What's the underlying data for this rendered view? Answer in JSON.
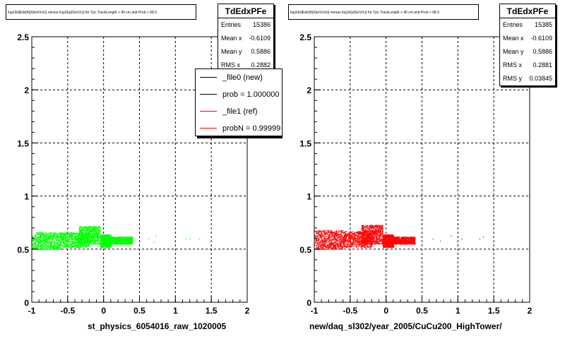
{
  "chart_data": [
    {
      "type": "scatter",
      "title": "log10(dEdx(fit)/(keV/cm)) versus log10(p(GeV/c)) for Tpc.TrackLength > 40 cm and Prob > 68.3",
      "xlabel": "st_physics_6054016_raw_1020005",
      "ylabel": "",
      "xlim": [
        -1,
        2
      ],
      "ylim": [
        0,
        2.5
      ],
      "x_ticks": [
        "-1",
        "-0.5",
        "0",
        "0.5",
        "1",
        "1.5",
        "2"
      ],
      "y_ticks": [
        "0",
        "0.5",
        "1",
        "1.5",
        "2",
        "2.5"
      ],
      "grid": true,
      "color": "#00ff00",
      "stats": {
        "name": "TdEdxPFe",
        "rows": [
          {
            "label": "Entries",
            "value": "15386"
          },
          {
            "label": "Mean x",
            "value": "-0.6109"
          },
          {
            "label": "Mean y",
            "value": "0.5886"
          },
          {
            "label": "RMS x",
            "value": "0.2882"
          }
        ]
      },
      "legend": [
        {
          "label": "_file0 (new)",
          "color": "#000000"
        },
        {
          "label": "prob = 1.000000",
          "color": "#000000"
        },
        {
          "label": "_file1 (ref)",
          "color": "#ff0000"
        },
        {
          "label": "probN = 0.99999",
          "color": "#ff0000"
        }
      ],
      "bands": [
        {
          "x": [
            -1.0,
            -0.6
          ],
          "y": [
            0.5,
            0.66
          ]
        },
        {
          "x": [
            -0.6,
            -0.2
          ],
          "y": [
            0.52,
            0.66
          ]
        },
        {
          "x": [
            -0.35,
            -0.05
          ],
          "y": [
            0.55,
            0.72
          ]
        },
        {
          "x": [
            -0.05,
            0.1
          ],
          "y": [
            0.52,
            0.64
          ]
        },
        {
          "x": [
            0.1,
            0.4
          ],
          "y": [
            0.55,
            0.62
          ]
        }
      ],
      "outliers": [
        {
          "x": 0.62,
          "y": 0.6
        },
        {
          "x": 0.7,
          "y": 0.57
        },
        {
          "x": 0.72,
          "y": 0.63
        },
        {
          "x": 1.15,
          "y": 0.6
        },
        {
          "x": 1.2,
          "y": 0.6
        },
        {
          "x": 1.33,
          "y": 0.6
        }
      ]
    },
    {
      "type": "scatter",
      "title": "log10(dEdx(fit)/(keV/cm)) versus log10(p(GeV/c)) for Tpc.TrackLength > 40 cm and Prob > 68.3",
      "xlabel": "new/daq_sl302/year_2005/CuCu200_HighTower/",
      "ylabel": "",
      "xlim": [
        -1,
        2
      ],
      "ylim": [
        0,
        2.5
      ],
      "x_ticks": [
        "-1",
        "-0.5",
        "0",
        "0.5",
        "1",
        "1.5",
        "2"
      ],
      "y_ticks": [
        "0",
        "0.5",
        "1",
        "1.5",
        "2",
        "2.5"
      ],
      "grid": true,
      "color": "#ff0000",
      "stats": {
        "name": "TdEdxPFe",
        "rows": [
          {
            "label": "Entries",
            "value": "15385"
          },
          {
            "label": "Mean x",
            "value": "-0.6109"
          },
          {
            "label": "Mean y",
            "value": "0.5886"
          },
          {
            "label": "RMS x",
            "value": "0.2881"
          },
          {
            "label": "RMS y",
            "value": "0.03845"
          }
        ]
      },
      "bands": [
        {
          "x": [
            -1.0,
            -0.6
          ],
          "y": [
            0.5,
            0.68
          ]
        },
        {
          "x": [
            -0.6,
            -0.2
          ],
          "y": [
            0.52,
            0.67
          ]
        },
        {
          "x": [
            -0.35,
            -0.05
          ],
          "y": [
            0.55,
            0.73
          ]
        },
        {
          "x": [
            -0.05,
            0.1
          ],
          "y": [
            0.52,
            0.64
          ]
        },
        {
          "x": [
            0.1,
            0.4
          ],
          "y": [
            0.55,
            0.62
          ]
        }
      ],
      "outliers": [
        {
          "x": 0.65,
          "y": 0.6
        },
        {
          "x": 0.75,
          "y": 0.58
        },
        {
          "x": 0.9,
          "y": 0.63
        },
        {
          "x": 1.05,
          "y": 0.6
        },
        {
          "x": 1.3,
          "y": 0.6
        },
        {
          "x": 1.35,
          "y": 0.62
        }
      ]
    }
  ]
}
